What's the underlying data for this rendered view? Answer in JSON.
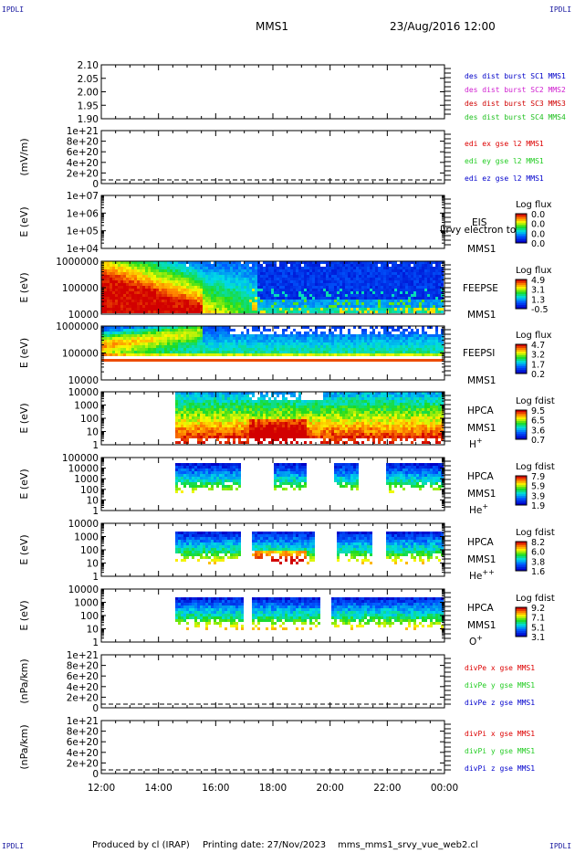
{
  "header": {
    "corner_tag": "IPDLI",
    "satellite": "MMS1",
    "date_time": "23/Aug/2016 12:00"
  },
  "footer": {
    "produced_by": "Produced by cl (IRAP)",
    "printing_date": "Printing date: 27/Nov/2023",
    "product": "mms_mms1_srvy_vue_web2.cl"
  },
  "colors": {
    "mms1": "#0000c8",
    "mms2": "#d020d0",
    "mms3": "#d00000",
    "mms4": "#20c020",
    "x": "#dd0000",
    "y": "#22cc22",
    "z": "#0000cc"
  },
  "chart_data": [
    {
      "type": "line",
      "ylabel": "",
      "ylim": [
        1.9,
        2.1
      ],
      "yticks": [
        "2.10",
        "2.05",
        "2.00",
        "1.95",
        "1.90"
      ],
      "legend": [
        {
          "label": "des dist burst SC1 MMS1",
          "color": "#0000c8"
        },
        {
          "label": "des dist burst SC2 MMS2",
          "color": "#d020d0"
        },
        {
          "label": "des dist burst SC3 MMS3",
          "color": "#d00000"
        },
        {
          "label": "des dist burst SC4 MMS4",
          "color": "#20c020"
        }
      ]
    },
    {
      "type": "line",
      "ylabel": "(mV/m)",
      "ylim": [
        0,
        1e+21
      ],
      "yticks": [
        "1e+21",
        "8e+20",
        "6e+20",
        "4e+20",
        "2e+20",
        "0"
      ],
      "zero_line": true,
      "legend": [
        {
          "label": "edi ex gse l2 MMS1",
          "color": "#dd0000"
        },
        {
          "label": "edi ey gse l2 MMS1",
          "color": "#22cc22"
        },
        {
          "label": "edi ez gse l2 MMS1",
          "color": "#0000cc"
        }
      ]
    },
    {
      "type": "heatmap",
      "ylabel": "E (eV)",
      "scale": "log",
      "ylim": [
        10000,
        10000000
      ],
      "yticks": [
        "1e+07",
        "1e+06",
        "1e+05",
        "1e+04"
      ],
      "instrument": "EIS",
      "overlay_text": "l\\rvy electron to",
      "spacecraft": "MMS1",
      "colorbar": {
        "title": "Log flux",
        "ticks": [
          "0.0",
          "0.0",
          "0.0",
          "0.0"
        ]
      }
    },
    {
      "type": "heatmap",
      "ylabel": "E (eV)",
      "scale": "log",
      "ylim": [
        10000,
        1000000
      ],
      "yticks": [
        "1000000",
        "100000",
        "10000"
      ],
      "instrument": "FEEPSE",
      "spacecraft": "MMS1",
      "colorbar": {
        "title": "Log flux",
        "ticks": [
          "4.9",
          "3.1",
          "1.3",
          "-0.5"
        ]
      }
    },
    {
      "type": "heatmap",
      "ylabel": "E (eV)",
      "scale": "log",
      "ylim": [
        10000,
        1000000
      ],
      "yticks": [
        "1000000",
        "100000",
        "10000"
      ],
      "instrument": "FEEPSI",
      "spacecraft": "MMS1",
      "colorbar": {
        "title": "Log flux",
        "ticks": [
          "4.7",
          "3.2",
          "1.7",
          "0.2"
        ]
      }
    },
    {
      "type": "heatmap",
      "ylabel": "E (eV)",
      "scale": "log",
      "ylim": [
        1,
        10000
      ],
      "yticks": [
        "10000",
        "1000",
        "100",
        "10",
        "1"
      ],
      "instrument": "HPCA",
      "spacecraft": "MMS1",
      "species": "H",
      "charge": "+",
      "colorbar": {
        "title": "Log fdist",
        "ticks": [
          "9.5",
          "6.5",
          "3.6",
          "0.7"
        ]
      }
    },
    {
      "type": "heatmap",
      "ylabel": "E (eV)",
      "scale": "log",
      "ylim": [
        1,
        100000
      ],
      "yticks": [
        "100000",
        "10000",
        "1000",
        "100",
        "10",
        "1"
      ],
      "instrument": "HPCA",
      "spacecraft": "MMS1",
      "species": "He",
      "charge": "+",
      "colorbar": {
        "title": "Log fdist",
        "ticks": [
          "7.9",
          "5.9",
          "3.9",
          "1.9"
        ]
      }
    },
    {
      "type": "heatmap",
      "ylabel": "E (eV)",
      "scale": "log",
      "ylim": [
        1,
        10000
      ],
      "yticks": [
        "10000",
        "1000",
        "100",
        "10",
        "1"
      ],
      "instrument": "HPCA",
      "spacecraft": "MMS1",
      "species": "He",
      "charge": "++",
      "colorbar": {
        "title": "Log fdist",
        "ticks": [
          "8.2",
          "6.0",
          "3.8",
          "1.6"
        ]
      }
    },
    {
      "type": "heatmap",
      "ylabel": "E (eV)",
      "scale": "log",
      "ylim": [
        1,
        10000
      ],
      "yticks": [
        "10000",
        "1000",
        "100",
        "10",
        "1"
      ],
      "instrument": "HPCA",
      "spacecraft": "MMS1",
      "species": "O",
      "charge": "+",
      "colorbar": {
        "title": "Log fdist",
        "ticks": [
          "9.2",
          "7.1",
          "5.1",
          "3.1"
        ]
      }
    },
    {
      "type": "line",
      "ylabel": "(nPa/km)",
      "ylim": [
        0,
        1e+21
      ],
      "yticks": [
        "1e+21",
        "8e+20",
        "6e+20",
        "4e+20",
        "2e+20",
        "0"
      ],
      "zero_line": true,
      "legend": [
        {
          "label": "divPe x gse MMS1",
          "color": "#dd0000"
        },
        {
          "label": "divPe y gse MMS1",
          "color": "#22cc22"
        },
        {
          "label": "divPe z gse MMS1",
          "color": "#0000cc"
        }
      ]
    },
    {
      "type": "line",
      "ylabel": "(nPa/km)",
      "ylim": [
        0,
        1e+21
      ],
      "yticks": [
        "1e+21",
        "8e+20",
        "6e+20",
        "4e+20",
        "2e+20",
        "0"
      ],
      "zero_line": true,
      "legend": [
        {
          "label": "divPi x gse MMS1",
          "color": "#dd0000"
        },
        {
          "label": "divPi y gse MMS1",
          "color": "#22cc22"
        },
        {
          "label": "divPi z gse MMS1",
          "color": "#0000cc"
        }
      ]
    }
  ],
  "time_axis": {
    "labels": [
      "12:00",
      "14:00",
      "16:00",
      "18:00",
      "20:00",
      "22:00",
      "00:00"
    ],
    "range_hours": [
      12,
      24
    ]
  }
}
